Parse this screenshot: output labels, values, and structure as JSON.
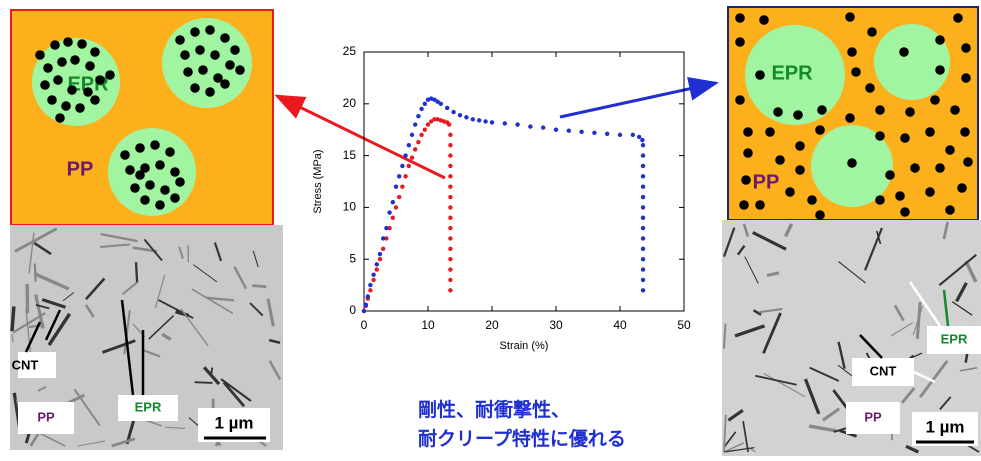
{
  "chart_data": {
    "type": "scatter",
    "x_label": "Strain (%)",
    "y_label": "Stress (MPa)",
    "xlim": [
      0,
      50
    ],
    "ylim": [
      0,
      25
    ],
    "xticks": [
      0,
      10,
      20,
      30,
      40,
      50
    ],
    "yticks": [
      0,
      5,
      10,
      15,
      20,
      25
    ],
    "series": [
      {
        "color": "#e8191f",
        "x": [
          0,
          0.3,
          0.6,
          1,
          1.5,
          2,
          2.5,
          3,
          3.5,
          4,
          4.5,
          5,
          5.5,
          6,
          6.5,
          7,
          7.5,
          8,
          8.5,
          9,
          9.5,
          10,
          10.5,
          11,
          11.5,
          12,
          12.5,
          13,
          13.3,
          13.5,
          13.5,
          13.5,
          13.5,
          13.5,
          13.5,
          13.5,
          13.5,
          13.5,
          13.5,
          13.5,
          13.5,
          13.5,
          13.5,
          13.5,
          13.5
        ],
        "values": [
          0,
          0.5,
          1.2,
          2,
          3,
          4,
          5,
          6,
          7,
          8,
          9,
          10,
          11,
          12,
          13,
          14,
          14.8,
          15.6,
          16.3,
          17,
          17.5,
          18,
          18.3,
          18.5,
          18.5,
          18.4,
          18.3,
          18.2,
          18,
          17,
          16,
          15,
          14,
          13,
          12,
          11,
          10,
          9,
          8,
          7,
          6,
          5,
          4,
          3,
          2
        ]
      },
      {
        "color": "#1f2fd0",
        "x": [
          0,
          0.3,
          0.6,
          1,
          1.5,
          2,
          2.5,
          3,
          3.5,
          4,
          4.5,
          5,
          5.5,
          6,
          6.5,
          7,
          7.5,
          8,
          8.5,
          9,
          9.5,
          10,
          10.5,
          11,
          11.5,
          12,
          13,
          14,
          15,
          16,
          17,
          18,
          19,
          20,
          22,
          24,
          26,
          28,
          30,
          32,
          34,
          36,
          38,
          40,
          42,
          43,
          43.5,
          43.6,
          43.6,
          43.6,
          43.6,
          43.6,
          43.6,
          43.6,
          43.6,
          43.6,
          43.6,
          43.6,
          43.6,
          43.6,
          43.6,
          43.6
        ],
        "values": [
          0,
          0.6,
          1.4,
          2.5,
          3.5,
          4.5,
          5.5,
          7,
          8,
          9.5,
          10.5,
          12,
          13,
          14,
          15,
          16,
          17,
          18,
          18.8,
          19.5,
          20,
          20.4,
          20.5,
          20.4,
          20.2,
          20,
          19.6,
          19.2,
          18.9,
          18.7,
          18.5,
          18.4,
          18.3,
          18.2,
          18.1,
          18,
          17.8,
          17.7,
          17.5,
          17.4,
          17.3,
          17.2,
          17.1,
          17,
          17,
          16.8,
          16.5,
          16,
          15,
          14,
          13,
          12,
          11,
          10,
          9,
          8,
          7,
          6,
          5,
          4,
          3,
          2
        ]
      }
    ]
  },
  "left_schematic": {
    "epr": "EPR",
    "pp": "PP"
  },
  "left_micrograph": {
    "cnt": "CNT",
    "epr": "EPR",
    "pp": "PP",
    "scale": "1 µm"
  },
  "right_schematic": {
    "epr": "EPR",
    "pp": "PP"
  },
  "right_micrograph": {
    "epr": "EPR",
    "cnt": "CNT",
    "pp": "PP",
    "scale": "1 µm"
  },
  "caption": {
    "lines": [
      "剛性、耐衝撃性、",
      "耐クリープ特性に優れる"
    ]
  }
}
